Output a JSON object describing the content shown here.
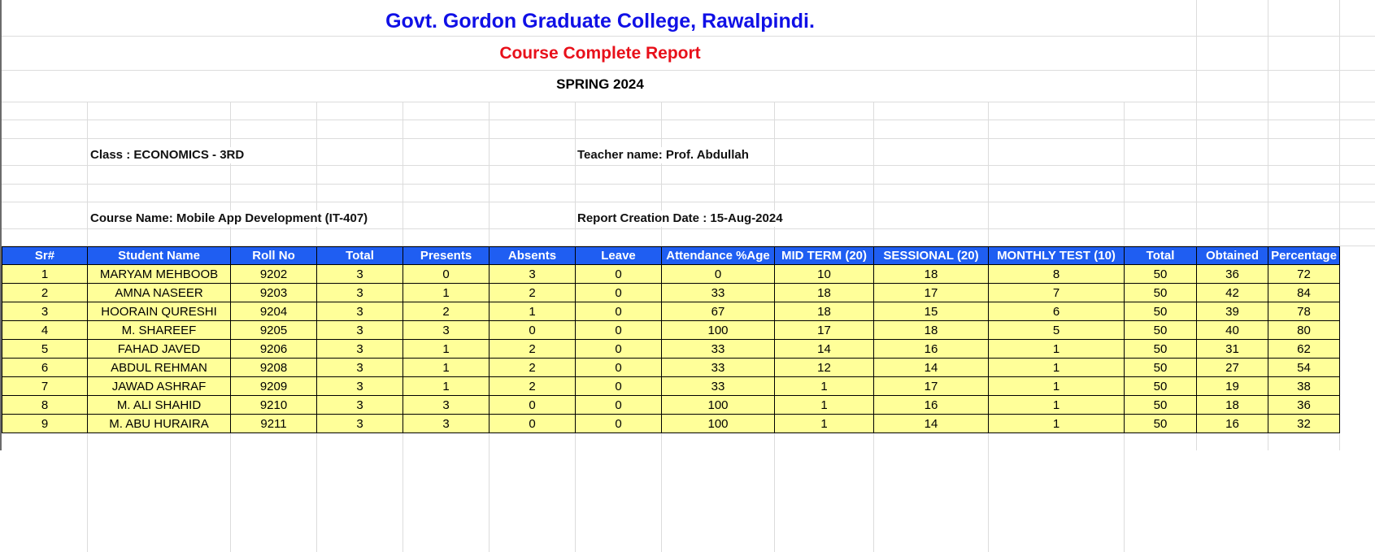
{
  "header": {
    "college": "Govt. Gordon Graduate College, Rawalpindi.",
    "report_title": "Course Complete Report",
    "term": "SPRING 2024"
  },
  "info": {
    "class": "Class : ECONOMICS - 3RD",
    "teacher": "Teacher name: Prof. Abdullah",
    "course": "Course Name: Mobile App Development (IT-407)",
    "date": "Report Creation Date : 15-Aug-2024"
  },
  "colors": {
    "header_bg": "#1f5ef2",
    "row_bg": "#ffff99",
    "college_title": "#1010e6",
    "report_title": "#e8101a"
  },
  "table": {
    "columns": [
      "Sr#",
      "Student Name",
      "Roll No",
      "Total",
      "Presents",
      "Absents",
      "Leave",
      "Attendance %Age",
      "MID TERM (20)",
      "SESSIONAL (20)",
      "MONTHLY TEST (10)",
      "Total",
      "Obtained",
      "Percentage"
    ],
    "rows": [
      [
        "1",
        "MARYAM MEHBOOB",
        "9202",
        "3",
        "0",
        "3",
        "0",
        "0",
        "10",
        "18",
        "8",
        "50",
        "36",
        "72"
      ],
      [
        "2",
        "AMNA NASEER",
        "9203",
        "3",
        "1",
        "2",
        "0",
        "33",
        "18",
        "17",
        "7",
        "50",
        "42",
        "84"
      ],
      [
        "3",
        "HOORAIN QURESHI",
        "9204",
        "3",
        "2",
        "1",
        "0",
        "67",
        "18",
        "15",
        "6",
        "50",
        "39",
        "78"
      ],
      [
        "4",
        "M. SHAREEF",
        "9205",
        "3",
        "3",
        "0",
        "0",
        "100",
        "17",
        "18",
        "5",
        "50",
        "40",
        "80"
      ],
      [
        "5",
        "FAHAD JAVED",
        "9206",
        "3",
        "1",
        "2",
        "0",
        "33",
        "14",
        "16",
        "1",
        "50",
        "31",
        "62"
      ],
      [
        "6",
        "ABDUL REHMAN",
        "9208",
        "3",
        "1",
        "2",
        "0",
        "33",
        "12",
        "14",
        "1",
        "50",
        "27",
        "54"
      ],
      [
        "7",
        "JAWAD ASHRAF",
        "9209",
        "3",
        "1",
        "2",
        "0",
        "33",
        "1",
        "17",
        "1",
        "50",
        "19",
        "38"
      ],
      [
        "8",
        "M. ALI SHAHID",
        "9210",
        "3",
        "3",
        "0",
        "0",
        "100",
        "1",
        "16",
        "1",
        "50",
        "18",
        "36"
      ],
      [
        "9",
        "M. ABU HURAIRA",
        "9211",
        "3",
        "3",
        "0",
        "0",
        "100",
        "1",
        "14",
        "1",
        "50",
        "16",
        "32"
      ]
    ]
  }
}
